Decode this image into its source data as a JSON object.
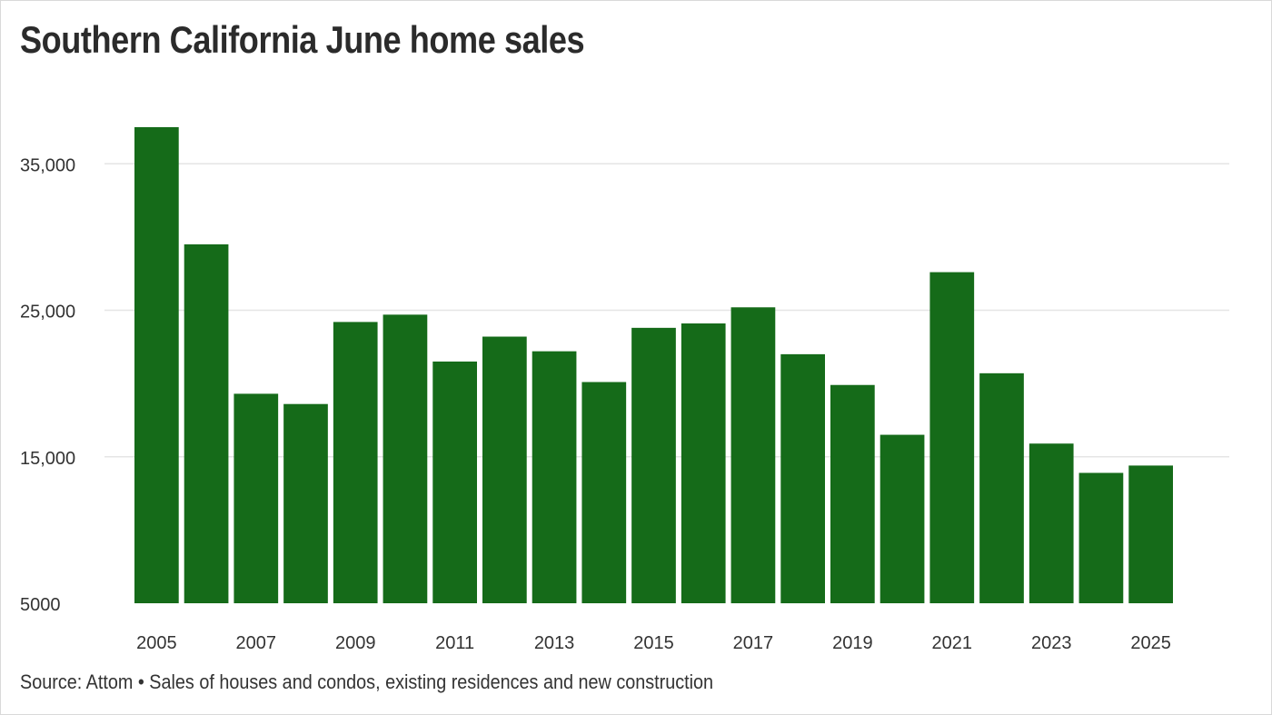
{
  "colors": {
    "bar": "#156b19",
    "grid": "#e5e5e5",
    "text": "#333333"
  },
  "chart_data": {
    "type": "bar",
    "title": "Southern California June home sales",
    "source": "Source: Attom • Sales of houses and condos, existing residences and new construction",
    "categories": [
      "2005",
      "2006",
      "2007",
      "2008",
      "2009",
      "2010",
      "2011",
      "2012",
      "2013",
      "2014",
      "2015",
      "2016",
      "2017",
      "2018",
      "2019",
      "2020",
      "2021",
      "2022",
      "2023",
      "2024",
      "2025"
    ],
    "values": [
      37500,
      29500,
      19300,
      18600,
      24200,
      24700,
      21500,
      23200,
      22200,
      20100,
      23800,
      24100,
      25200,
      22000,
      19900,
      16500,
      27600,
      20700,
      15900,
      13900,
      14400
    ],
    "x_tick_labels": [
      "2005",
      "2007",
      "2009",
      "2011",
      "2013",
      "2015",
      "2017",
      "2019",
      "2021",
      "2023",
      "2025"
    ],
    "y_ticks": [
      5000,
      15000,
      25000,
      35000
    ],
    "y_tick_labels": [
      "5000",
      "15,000",
      "25,000",
      "35,000"
    ],
    "ylim": [
      5000,
      40000
    ],
    "grid": true,
    "legend": "none"
  }
}
